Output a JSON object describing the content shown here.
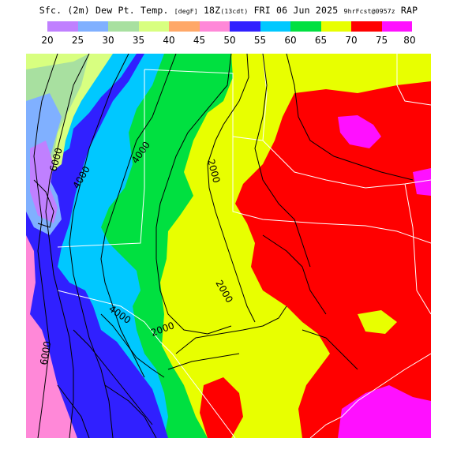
{
  "title": {
    "main": "Sfc. (2m) Dew Pt. Temp.",
    "units": "[degF]",
    "valid": "18Z",
    "local": "(13cdt)",
    "date": "FRI 06 Jun 2025",
    "forecast": "9hrFcst@0957z",
    "model": "RAP"
  },
  "legend": {
    "ticks": [
      "20",
      "25",
      "30",
      "35",
      "40",
      "45",
      "50",
      "55",
      "60",
      "65",
      "70",
      "75",
      "80"
    ],
    "bins": [
      {
        "min": 20,
        "max": 25,
        "color": "#c080ff"
      },
      {
        "min": 25,
        "max": 30,
        "color": "#80b0ff"
      },
      {
        "min": 30,
        "max": 35,
        "color": "#a8e0a0"
      },
      {
        "min": 35,
        "max": 40,
        "color": "#d8ff80"
      },
      {
        "min": 40,
        "max": 45,
        "color": "#ffa868"
      },
      {
        "min": 45,
        "max": 50,
        "color": "#ff88d8"
      },
      {
        "min": 50,
        "max": 55,
        "color": "#3020ff"
      },
      {
        "min": 55,
        "max": 60,
        "color": "#00c8ff"
      },
      {
        "min": 60,
        "max": 65,
        "color": "#00e040"
      },
      {
        "min": 65,
        "max": 70,
        "color": "#e8ff00"
      },
      {
        "min": 70,
        "max": 75,
        "color": "#ff0000"
      },
      {
        "min": 75,
        "max": 80,
        "color": "#ff10ff"
      }
    ]
  },
  "contour_labels": [
    "6000",
    "4000",
    "4000",
    "2000",
    "2000",
    "4000",
    "2000",
    "6000"
  ],
  "colors": {
    "border": "#ffffff",
    "contour": "#000000",
    "background": "#ffffff"
  }
}
